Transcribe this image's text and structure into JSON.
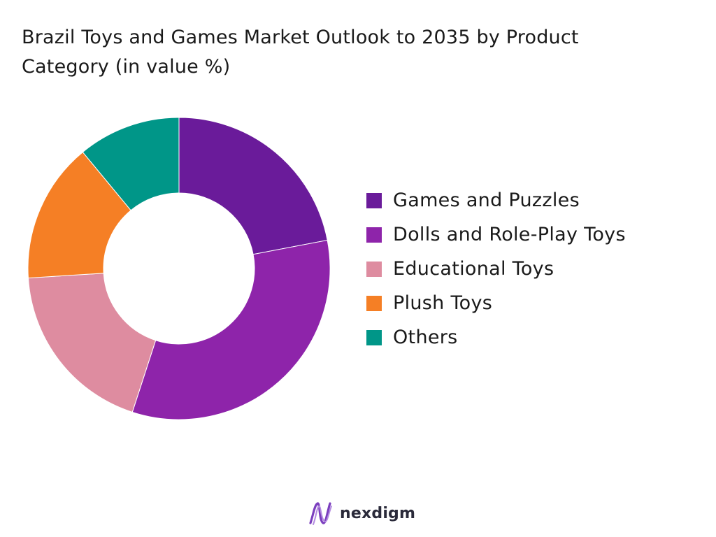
{
  "chart_data": {
    "type": "pie",
    "variant": "donut",
    "title": "Brazil Toys and Games Market Outlook to 2035 by Product Category (in value %)",
    "series": [
      {
        "name": "Games and Puzzles",
        "value": 22,
        "color": "#6a1b9a"
      },
      {
        "name": "Dolls and Role-Play Toys",
        "value": 33,
        "color": "#8e24aa"
      },
      {
        "name": "Educational Toys",
        "value": 19,
        "color": "#de8ca0"
      },
      {
        "name": "Plush Toys",
        "value": 15,
        "color": "#f57f25"
      },
      {
        "name": "Others",
        "value": 11,
        "color": "#009688"
      }
    ],
    "legend_position": "right"
  },
  "brand": {
    "name": "nexdigm",
    "logo_icon": "nexdigm-logo-icon",
    "logo_color": "#7b3fbe"
  }
}
